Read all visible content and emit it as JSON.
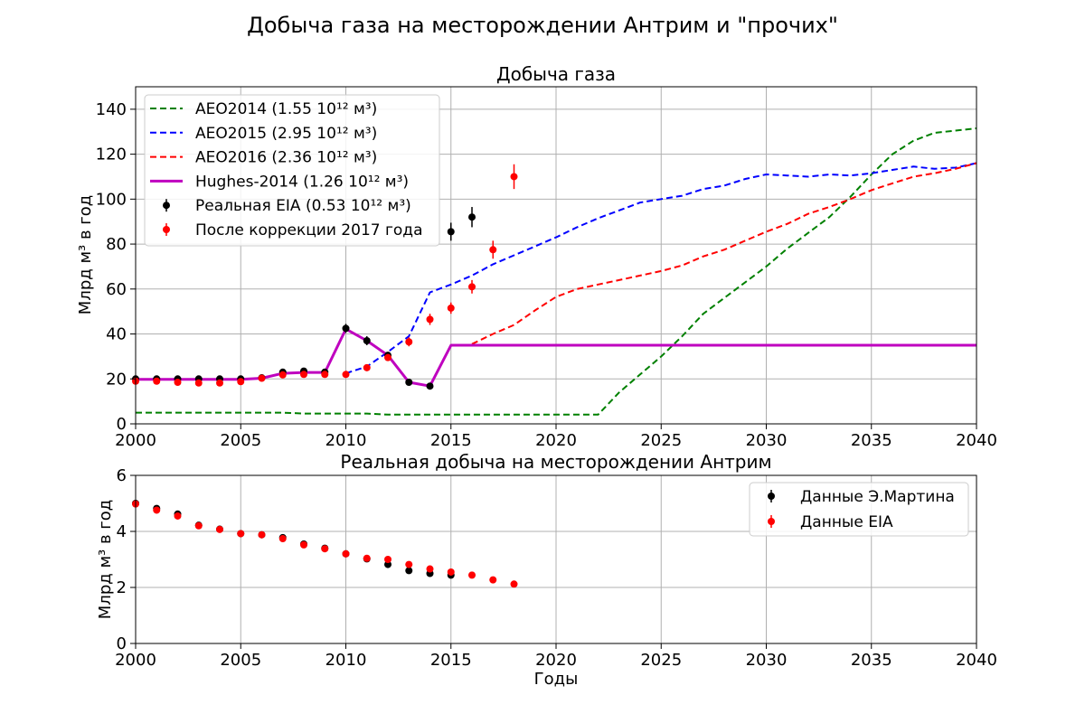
{
  "figure": {
    "suptitle": "Добыча газа на месторождении Антрим и \"прочих\""
  },
  "colors": {
    "aeo2014": "#008000",
    "aeo2015": "#0000ff",
    "aeo2016": "#ff0000",
    "hughes": "#bf00bf",
    "eia": "#000000",
    "corrected": "#ff0000",
    "grid": "#b0b0b0"
  },
  "chart_data": [
    {
      "type": "line",
      "title": "Добыча газа",
      "xlabel": "",
      "ylabel": "Млрд м³ в год",
      "xlim": [
        2000,
        2040
      ],
      "ylim": [
        0,
        150
      ],
      "xticks": [
        2000,
        2005,
        2010,
        2015,
        2020,
        2025,
        2030,
        2035,
        2040
      ],
      "yticks": [
        0,
        20,
        40,
        60,
        80,
        100,
        120,
        140
      ],
      "grid": true,
      "legend_position": "top-left",
      "series": [
        {
          "name": "AEO2014 (1.55 10¹² м³)",
          "style": "dashed",
          "x": [
            2000,
            2007,
            2008,
            2011,
            2012,
            2022,
            2023,
            2024,
            2025,
            2026,
            2027,
            2028,
            2029,
            2030,
            2031,
            2032,
            2033,
            2034,
            2035,
            2036,
            2037,
            2038,
            2039,
            2040
          ],
          "y": [
            5.0,
            5.0,
            4.6,
            4.6,
            4.1,
            4.1,
            14,
            22,
            30,
            39,
            49,
            56,
            63,
            70,
            78,
            85,
            92,
            101,
            111,
            120,
            126,
            129.5,
            130.5,
            131.5
          ]
        },
        {
          "name": "AEO2015 (2.95 10¹² м³)",
          "style": "dashed",
          "x": [
            2010,
            2011,
            2012,
            2013,
            2014,
            2015,
            2016,
            2017,
            2018,
            2019,
            2020,
            2021,
            2022,
            2023,
            2024,
            2025,
            2026,
            2027,
            2028,
            2029,
            2030,
            2031,
            2032,
            2033,
            2034,
            2035,
            2036,
            2037,
            2038,
            2039,
            2040
          ],
          "y": [
            22.5,
            25.5,
            32,
            39,
            58.5,
            62,
            66,
            71,
            75,
            79,
            83,
            87.5,
            91.5,
            95,
            98.5,
            100,
            101.5,
            104.5,
            106,
            109,
            111,
            110.5,
            110,
            111,
            110.5,
            111.5,
            113,
            114.5,
            113.5,
            114,
            116
          ]
        },
        {
          "name": "AEO2016 (2.36 10¹² м³)",
          "style": "dashed",
          "x": [
            2016,
            2017,
            2018,
            2019,
            2020,
            2021,
            2022,
            2023,
            2024,
            2025,
            2026,
            2027,
            2028,
            2029,
            2030,
            2031,
            2032,
            2033,
            2034,
            2035,
            2036,
            2037,
            2038,
            2039,
            2040
          ],
          "y": [
            35.5,
            40,
            44,
            50.5,
            56.5,
            60,
            62,
            64,
            66,
            68,
            70.5,
            74.5,
            77.5,
            81.5,
            85.5,
            89,
            93.5,
            96.5,
            100,
            104,
            107,
            110,
            111.5,
            113.5,
            116
          ]
        },
        {
          "name": "Hughes-2014 (1.26 10¹² м³)",
          "style": "solid",
          "x": [
            2000,
            2001,
            2002,
            2003,
            2004,
            2005,
            2006,
            2007,
            2008,
            2009,
            2010,
            2011,
            2012,
            2013,
            2014,
            2015,
            2040
          ],
          "y": [
            19.8,
            19.8,
            19.8,
            19.8,
            19.8,
            19.8,
            20.3,
            22.5,
            22.9,
            22.9,
            42.2,
            37,
            30.5,
            18.5,
            16.8,
            35,
            35
          ]
        },
        {
          "name": "Реальная EIA (0.53 10¹² м³)",
          "style": "errorbar",
          "x": [
            2000,
            2001,
            2002,
            2003,
            2004,
            2005,
            2006,
            2007,
            2008,
            2009,
            2010,
            2011,
            2012,
            2013,
            2014,
            2015,
            2016
          ],
          "y": [
            20,
            20,
            20,
            20,
            20,
            20,
            20.5,
            23,
            23.5,
            23,
            42.5,
            37,
            30.5,
            18.5,
            16.8,
            85.5,
            92
          ],
          "err": [
            1,
            1,
            1,
            1,
            1,
            1,
            1,
            1,
            1,
            1,
            2,
            2,
            1.5,
            1,
            1,
            4,
            4.5
          ]
        },
        {
          "name": "После коррекции 2017 года",
          "style": "errorbar",
          "x": [
            2000,
            2001,
            2002,
            2003,
            2004,
            2005,
            2006,
            2007,
            2008,
            2009,
            2010,
            2011,
            2012,
            2013,
            2014,
            2015,
            2016,
            2017,
            2018
          ],
          "y": [
            19,
            19,
            18.5,
            18.2,
            18.2,
            18.8,
            20.3,
            21.8,
            22,
            22,
            22,
            25,
            29.5,
            36.5,
            46.5,
            51.5,
            61,
            77.5,
            110
          ],
          "err": [
            1,
            1,
            1,
            1,
            1,
            1,
            1,
            1,
            1,
            1,
            1,
            1,
            1.5,
            2,
            2.5,
            2.5,
            3,
            4,
            5.5
          ]
        }
      ]
    },
    {
      "type": "scatter",
      "title": "Реальная добыча на месторождении Антрим",
      "xlabel": "Годы",
      "ylabel": "Млрд м³ в год",
      "xlim": [
        2000,
        2040
      ],
      "ylim": [
        0,
        6
      ],
      "xticks": [
        2000,
        2005,
        2010,
        2015,
        2020,
        2025,
        2030,
        2035,
        2040
      ],
      "yticks": [
        0,
        2,
        4,
        6
      ],
      "grid": true,
      "legend_position": "top-right",
      "series": [
        {
          "name": "Данные Э.Мартина",
          "x": [
            2000,
            2001,
            2002,
            2003,
            2004,
            2005,
            2006,
            2007,
            2008,
            2009,
            2010,
            2011,
            2012,
            2013,
            2014,
            2015
          ],
          "y": [
            5.0,
            4.82,
            4.62,
            4.22,
            4.08,
            3.92,
            3.88,
            3.78,
            3.55,
            3.4,
            3.2,
            3.02,
            2.82,
            2.6,
            2.5,
            2.44
          ],
          "err": [
            0.08,
            0.08,
            0.08,
            0.08,
            0.07,
            0.07,
            0.07,
            0.07,
            0.06,
            0.06,
            0.06,
            0.06,
            0.05,
            0.05,
            0.05,
            0.05
          ]
        },
        {
          "name": "Данные EIA",
          "x": [
            2000,
            2001,
            2002,
            2003,
            2004,
            2005,
            2006,
            2007,
            2008,
            2009,
            2010,
            2011,
            2012,
            2013,
            2014,
            2015,
            2016,
            2017,
            2018
          ],
          "y": [
            4.98,
            4.76,
            4.55,
            4.2,
            4.07,
            3.92,
            3.88,
            3.74,
            3.52,
            3.38,
            3.2,
            3.04,
            3.0,
            2.82,
            2.66,
            2.55,
            2.44,
            2.27,
            2.12
          ],
          "err": [
            0.06,
            0.06,
            0.06,
            0.06,
            0.06,
            0.06,
            0.06,
            0.06,
            0.05,
            0.05,
            0.05,
            0.05,
            0.05,
            0.05,
            0.05,
            0.05,
            0.05,
            0.04,
            0.04
          ]
        }
      ]
    }
  ]
}
